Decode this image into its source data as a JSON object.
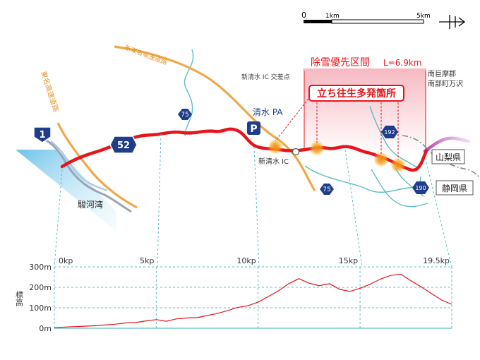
{
  "scale_bar": {
    "tick_0": "0",
    "tick_1": "1km",
    "tick_5": "5km"
  },
  "routes": {
    "r1": "1",
    "r52": "52",
    "r75a": "75",
    "r75b": "75",
    "r192": "192",
    "r190": "190"
  },
  "labels": {
    "tomei": "東名高速道路",
    "shin_tomei": "新東名高速道路",
    "suruga_bay": "駿河湾",
    "shimizu_pa_icon": "P",
    "shimizu_pa": "清水 PA",
    "shin_shimizu_ic": "新清水 IC",
    "shin_shimizu_junction": "新清水 IC 交差点",
    "nanbu_line1": "南巨摩郡",
    "nanbu_line2": "南部町万沢",
    "yamanashi": "山梨県",
    "shizuoka": "静岡県",
    "snow_section": "除雪優先区間",
    "snow_length": "L=6.9km",
    "stuck_points": "立ち往生多発箇所"
  },
  "colors": {
    "route_red": "#e8141c",
    "expressway": "#f0a848",
    "river": "#5cbfbf",
    "shield_blue": "#1f3d8a",
    "snow_band": "#f7b9c2",
    "stuck_glow": "#f39a1a"
  },
  "chart_data": {
    "type": "line",
    "xlabel": "",
    "ylabel": "標高",
    "xlim": [
      0,
      19.5
    ],
    "ylim": [
      0,
      300
    ],
    "x_ticks": [
      {
        "value": 0,
        "label": "0kp"
      },
      {
        "value": 5,
        "label": "5kp"
      },
      {
        "value": 10,
        "label": "10kp"
      },
      {
        "value": 15,
        "label": "15kp"
      },
      {
        "value": 19.5,
        "label": "19.5kp"
      }
    ],
    "y_ticks": [
      {
        "value": 0,
        "label": "0m"
      },
      {
        "value": 100,
        "label": "100m"
      },
      {
        "value": 200,
        "label": "200m"
      },
      {
        "value": 300,
        "label": "300m"
      }
    ],
    "series": [
      {
        "values": [
          [
            0,
            2
          ],
          [
            0.5,
            6
          ],
          [
            1,
            8
          ],
          [
            1.5,
            10
          ],
          [
            2,
            12
          ],
          [
            2.5,
            16
          ],
          [
            3,
            20
          ],
          [
            3.5,
            26
          ],
          [
            4,
            28
          ],
          [
            4.5,
            36
          ],
          [
            5,
            42
          ],
          [
            5.5,
            34
          ],
          [
            6,
            46
          ],
          [
            6.5,
            50
          ],
          [
            7,
            52
          ],
          [
            7.5,
            62
          ],
          [
            8,
            72
          ],
          [
            8.5,
            86
          ],
          [
            9,
            102
          ],
          [
            9.5,
            110
          ],
          [
            10,
            128
          ],
          [
            10.5,
            155
          ],
          [
            11,
            183
          ],
          [
            11.5,
            218
          ],
          [
            12,
            242
          ],
          [
            12.5,
            220
          ],
          [
            13,
            208
          ],
          [
            13.5,
            218
          ],
          [
            14,
            190
          ],
          [
            14.5,
            180
          ],
          [
            15,
            195
          ],
          [
            15.5,
            215
          ],
          [
            16,
            240
          ],
          [
            16.5,
            258
          ],
          [
            17,
            264
          ],
          [
            17.5,
            232
          ],
          [
            18,
            202
          ],
          [
            18.5,
            170
          ],
          [
            19,
            138
          ],
          [
            19.5,
            117
          ]
        ]
      }
    ]
  }
}
